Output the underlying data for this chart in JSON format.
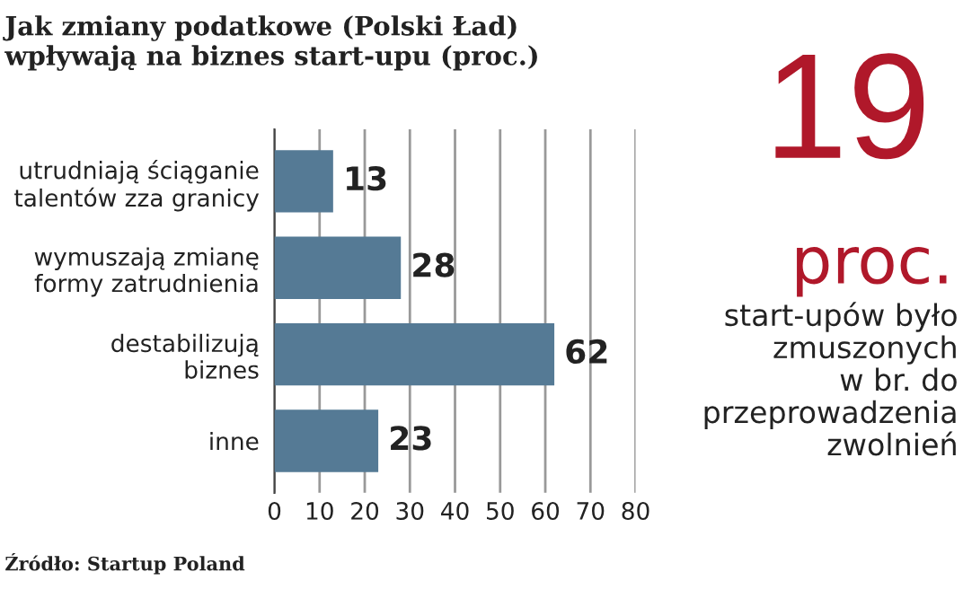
{
  "chart_data": {
    "type": "bar",
    "orientation": "horizontal",
    "title": "Jak zmiany podatkowe (Polski Ład)\nwpływają na biznes start-upu (proc.)",
    "categories": [
      "utrudniają ściąganie\ntalentów zza granicy",
      "wymuszają zmianę\nformy zatrudnienia",
      "destabilizują\nbiznes",
      "inne"
    ],
    "values": [
      13,
      28,
      62,
      23
    ],
    "color": "#557a95",
    "data_labels": true,
    "xlim": [
      0,
      80
    ],
    "xticks": [
      0,
      10,
      20,
      30,
      40,
      50,
      60,
      70,
      80
    ],
    "grid": "x",
    "annotations": [
      "19",
      "proc.",
      "start-upów było\nzmuszonych\nw br. do\nprzeprowadzenia\nzwolnień",
      "Źródło: Startup Poland"
    ]
  }
}
